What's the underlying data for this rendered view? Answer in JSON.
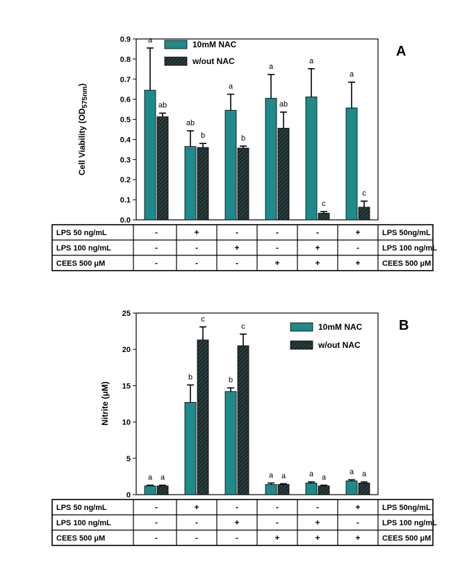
{
  "chart_data": [
    {
      "type": "bar",
      "panel_label": "A",
      "ylabel_main": "Cell Viability (OD",
      "ylabel_sub": "575nm",
      "ylabel_close": ")",
      "ylim": [
        0,
        0.9
      ],
      "yticks": [
        "0.0",
        "0.1",
        "0.2",
        "0.3",
        "0.4",
        "0.5",
        "0.6",
        "0.7",
        "0.8",
        "0.9"
      ],
      "ytick_values": [
        0,
        0.1,
        0.2,
        0.3,
        0.4,
        0.5,
        0.6,
        0.7,
        0.8,
        0.9
      ],
      "legend_position": "top-left",
      "series": [
        {
          "name": "10mM NAC",
          "color": "#1f8a8a",
          "pattern": "solid",
          "values": [
            0.645,
            0.365,
            0.545,
            0.605,
            0.612,
            0.557
          ],
          "errors": [
            0.21,
            0.078,
            0.08,
            0.118,
            0.14,
            0.128
          ],
          "labels": [
            "a",
            "ab",
            "a",
            "a",
            "a",
            "a"
          ]
        },
        {
          "name": "w/out NAC",
          "color": "#1a2a2a",
          "pattern": "hatched",
          "values": [
            0.513,
            0.36,
            0.357,
            0.456,
            0.033,
            0.063
          ],
          "errors": [
            0.018,
            0.02,
            0.01,
            0.08,
            0.008,
            0.03
          ],
          "labels": [
            "ab",
            "b",
            "b",
            "ab",
            "c",
            "c"
          ]
        }
      ],
      "table": {
        "rows": [
          {
            "label": "LPS  50 ng/mL",
            "cells": [
              "-",
              "+",
              "-",
              "-",
              "-",
              "+"
            ],
            "right_label": "LPS  50ng/mL"
          },
          {
            "label": "LPS 100 ng/mL",
            "cells": [
              "-",
              "-",
              "+",
              "-",
              "+",
              "-"
            ],
            "right_label": "LPS 100 ng/mL"
          },
          {
            "label": "CEES  500 μM",
            "cells": [
              "-",
              "-",
              "-",
              "+",
              "+",
              "+"
            ],
            "right_label": "CEES  500 μM"
          }
        ]
      }
    },
    {
      "type": "bar",
      "panel_label": "B",
      "ylabel_main": "Nitrite (μM)",
      "ylim": [
        0,
        25
      ],
      "yticks": [
        "0",
        "5",
        "10",
        "15",
        "20",
        "25"
      ],
      "ytick_values": [
        0,
        5,
        10,
        15,
        20,
        25
      ],
      "legend_position": "top-right",
      "series": [
        {
          "name": "10mM NAC",
          "color": "#1f8a8a",
          "pattern": "solid",
          "values": [
            1.2,
            12.7,
            14.2,
            1.4,
            1.6,
            1.9
          ],
          "errors": [
            0.1,
            2.4,
            0.5,
            0.2,
            0.15,
            0.15
          ],
          "labels": [
            "a",
            "b",
            "b",
            "a",
            "a",
            "a"
          ]
        },
        {
          "name": "w/out NAC",
          "color": "#1a2a2a",
          "pattern": "hatched",
          "values": [
            1.2,
            21.3,
            20.5,
            1.4,
            1.2,
            1.6
          ],
          "errors": [
            0.1,
            1.8,
            1.6,
            0.1,
            0.1,
            0.15
          ],
          "labels": [
            "a",
            "c",
            "c",
            "a",
            "a",
            "a"
          ]
        }
      ],
      "table": {
        "rows": [
          {
            "label": "LPS   50 ng/mL",
            "cells": [
              "-",
              "+",
              "-",
              "-",
              "-",
              "+"
            ],
            "right_label": "LPS   50ng/mL"
          },
          {
            "label": "LPS 100 ng/mL",
            "cells": [
              "-",
              "-",
              "+",
              "-",
              "+",
              "-"
            ],
            "right_label": "LPS 100 ng/mL"
          },
          {
            "label": "CEES  500 μM",
            "cells": [
              "-",
              "-",
              "-",
              "+",
              "+",
              "+"
            ],
            "right_label": "CEES  500 μM"
          }
        ]
      }
    }
  ]
}
